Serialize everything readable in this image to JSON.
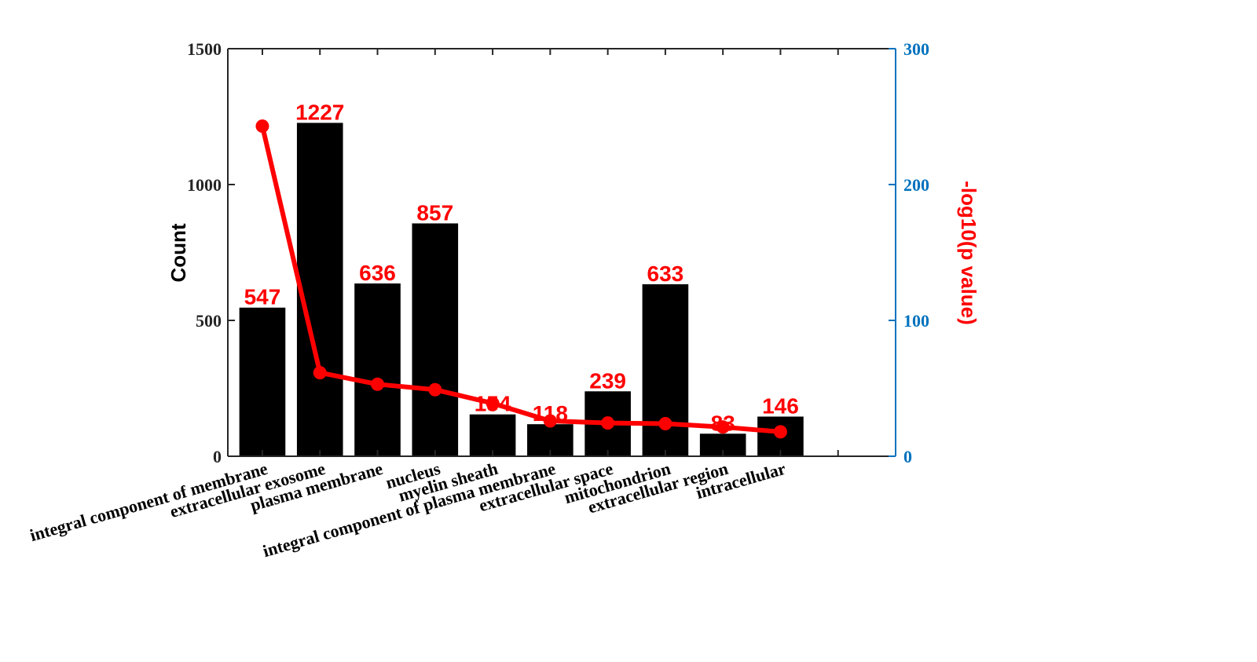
{
  "chart_data": {
    "type": "bar",
    "categories": [
      "integral component of membrane",
      "extracellular exosome",
      "plasma membrane",
      "nucleus",
      "myelin sheath",
      "integral component of plasma membrane",
      "extracellular space",
      "mitochondrion",
      "extracellular region",
      "intracellular"
    ],
    "series": [
      {
        "type": "bar",
        "axis": "left",
        "values": [
          547,
          1227,
          636,
          857,
          154,
          118,
          239,
          633,
          83,
          146
        ],
        "data_labels": [
          "547",
          "1227",
          "636",
          "857",
          "154",
          "118",
          "239",
          "633",
          "83",
          "146"
        ],
        "color": "#000000"
      },
      {
        "type": "line",
        "axis": "right",
        "values": [
          243,
          61.5,
          53,
          49,
          39,
          26,
          24.5,
          24,
          21.5,
          18
        ],
        "color": "#ff0000"
      }
    ],
    "title": "",
    "xlabel": "",
    "ylabel": "Count",
    "ylabel_right": "-log10(p value)",
    "ylim": [
      0,
      1500
    ],
    "ylim_right": [
      0,
      300
    ],
    "yticks": [
      0,
      500,
      1000,
      1500
    ],
    "yticks_right": [
      0,
      100,
      200,
      300
    ],
    "ytick_labels": [
      "0",
      "500",
      "1000",
      "1500"
    ],
    "ytick_labels_right": [
      "0",
      "100",
      "200",
      "300"
    ],
    "grid": false,
    "colors": {
      "bars": "#000000",
      "line": "#ff0000",
      "data_labels": "#ff0000",
      "right_axis": "#0072BD",
      "left_axis": "#262626"
    }
  }
}
